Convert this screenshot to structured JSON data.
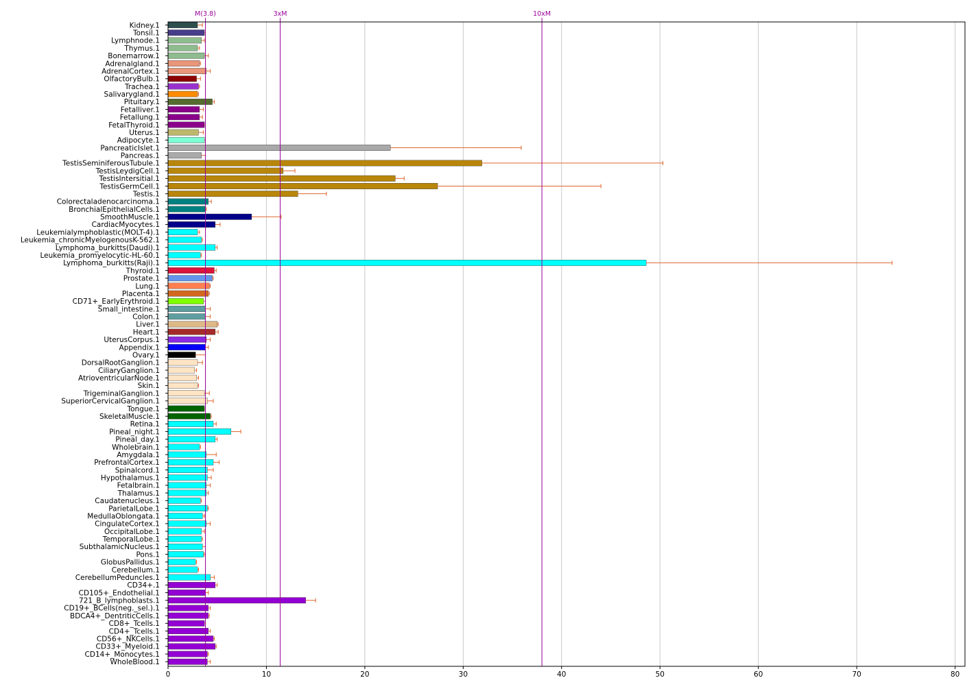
{
  "chart_data": {
    "type": "bar",
    "orientation": "horizontal",
    "title": "",
    "xlabel": "",
    "ylabel": "",
    "xlim": [
      0,
      81
    ],
    "xticks": [
      0,
      10,
      20,
      30,
      40,
      50,
      60,
      70,
      80
    ],
    "grid": "vertical",
    "error_bar_color": "#e0642a",
    "reference_lines": [
      {
        "label": "M(3.8)",
        "value": 3.8,
        "color": "#990099"
      },
      {
        "label": "3xM",
        "value": 11.4,
        "color": "#990099"
      },
      {
        "label": "10xM",
        "value": 38.0,
        "color": "#990099"
      }
    ],
    "categories": [
      "Kidney.1",
      "Tonsil.1",
      "Lymphnode.1",
      "Thymus.1",
      "Bonemarrow.1",
      "Adrenalgland.1",
      "AdrenalCortex.1",
      "OlfactoryBulb.1",
      "Trachea.1",
      "Salivarygland.1",
      "Pituitary.1",
      "Fetalliver.1",
      "Fetallung.1",
      "FetalThyroid.1",
      "Uterus.1",
      "Adipocyte.1",
      "PancreaticIslet.1",
      "Pancreas.1",
      "TestisSeminiferousTubule.1",
      "TestisLeydigCell.1",
      "TestisIntersitial.1",
      "TestisGermCell.1",
      "Testis.1",
      "Colorectaladenocarcinoma.1",
      "BronchialEpithelialCells.1",
      "SmoothMuscle.1",
      "CardiacMyocytes.1",
      "Leukemialymphoblastic(MOLT-4).1",
      "Leukemia_chronicMyelogenousK-562.1",
      "Lymphoma_burkitts(Daudi).1",
      "Leukemia_promyelocytic-HL-60.1",
      "Lymphoma_burkitts(Raji).1",
      "Thyroid.1",
      "Prostate.1",
      "Lung.1",
      "Placenta.1",
      "CD71+_EarlyErythroid.1",
      "Small_intestine.1",
      "Colon.1",
      "Liver.1",
      "Heart.1",
      "UterusCorpus.1",
      "Appendix.1",
      "Ovary.1",
      "DorsalRootGanglion.1",
      "CiliaryGanglion.1",
      "AtrioventricularNode.1",
      "Skin.1",
      "TrigeminalGanglion.1",
      "SuperiorCervicalGanglion.1",
      "Tongue.1",
      "SkeletalMuscle.1",
      "Retina.1",
      "Pineal_night.1",
      "Pineal_day.1",
      "Wholebrain.1",
      "Amygdala.1",
      "PrefrontalCortex.1",
      "Spinalcord.1",
      "Hypothalamus.1",
      "Fetalbrain.1",
      "Thalamus.1",
      "Caudatenucleus.1",
      "ParietalLobe.1",
      "MedullaOblongata.1",
      "CingulateCortex.1",
      "OccipitalLobe.1",
      "TemporalLobe.1",
      "SubthalamicNucleus.1",
      "Pons.1",
      "GlobusPallidus.1",
      "Cerebellum.1",
      "CerebellumPeduncles.1",
      "CD34+.1",
      "CD105+_Endothelial.1",
      "721_B_lymphoblasts.1",
      "CD19+_BCells(neg._sel.).1",
      "BDCA4+_DentriticCells.1",
      "CD8+_Tcells.1",
      "CD4+_Tcells.1",
      "CD56+_NKCells.1",
      "CD33+_Myeloid.1",
      "CD14+_Monocytes.1",
      "WholeBlood.1"
    ],
    "values": [
      3.0,
      3.7,
      3.4,
      3.0,
      3.7,
      3.2,
      3.9,
      2.9,
      3.1,
      3.0,
      4.5,
      3.2,
      3.2,
      3.7,
      3.1,
      3.7,
      22.6,
      3.4,
      31.9,
      11.7,
      23.1,
      27.4,
      13.2,
      4.1,
      3.8,
      8.5,
      4.8,
      3.0,
      3.4,
      4.8,
      3.3,
      48.6,
      4.7,
      4.5,
      4.2,
      4.1,
      3.6,
      3.8,
      3.8,
      5.0,
      4.8,
      3.9,
      3.8,
      2.8,
      3.0,
      2.7,
      2.9,
      3.0,
      3.7,
      4.0,
      3.7,
      4.3,
      4.6,
      6.4,
      4.8,
      3.2,
      3.9,
      4.6,
      4.0,
      4.0,
      3.9,
      3.9,
      3.3,
      4.0,
      3.5,
      3.9,
      3.4,
      3.4,
      3.5,
      3.6,
      2.8,
      3.0,
      4.3,
      4.8,
      3.8,
      14.0,
      4.1,
      4.1,
      3.7,
      4.1,
      4.6,
      4.8,
      4.0,
      4.0
    ],
    "errors": [
      0.5,
      0.1,
      0.3,
      0.2,
      0.4,
      0.1,
      0.4,
      0.4,
      0.1,
      0.1,
      0.2,
      0.4,
      0.3,
      0.1,
      0.5,
      0.1,
      13.3,
      0.4,
      18.4,
      1.2,
      0.9,
      16.6,
      2.9,
      0.3,
      0.1,
      3.0,
      0.5,
      0.2,
      0.1,
      0.2,
      0.1,
      25.0,
      0.2,
      0.1,
      0.1,
      0.1,
      0.2,
      0.5,
      0.5,
      0.1,
      0.3,
      0.4,
      0.3,
      1.0,
      0.5,
      0.2,
      0.2,
      0.1,
      0.5,
      0.6,
      0.1,
      0.1,
      0.3,
      1.0,
      0.2,
      0.1,
      1.0,
      0.6,
      0.6,
      0.4,
      0.4,
      0.2,
      0.1,
      0.1,
      0.2,
      0.4,
      0.3,
      0.1,
      0.3,
      0.1,
      0.1,
      0.1,
      0.4,
      0.2,
      0.3,
      1.0,
      0.2,
      0.1,
      0.1,
      0.2,
      0.1,
      0.1,
      0.1,
      0.3
    ],
    "colors": [
      "#2f4f4f",
      "#483d8b",
      "#8fbc8f",
      "#8fbc8f",
      "#8fbc8f",
      "#e9967a",
      "#e9967a",
      "#8b0000",
      "#9932cc",
      "#ff8c00",
      "#556b2f",
      "#8b008b",
      "#8b008b",
      "#8b008b",
      "#bdb76b",
      "#7fffd4",
      "#a9a9a9",
      "#a9a9a9",
      "#b8860b",
      "#b8860b",
      "#b8860b",
      "#b8860b",
      "#b8860b",
      "#008080",
      "#008080",
      "#00008b",
      "#00008b",
      "#00ffff",
      "#00ffff",
      "#00ffff",
      "#00ffff",
      "#00ffff",
      "#dc143c",
      "#6495ed",
      "#ff7f50",
      "#d2691e",
      "#7fff00",
      "#5f9ea0",
      "#5f9ea0",
      "#deb887",
      "#a52a2a",
      "#8a2be2",
      "#0000ff",
      "#000000",
      "#ffe4c4",
      "#ffe4c4",
      "#ffe4c4",
      "#ffe4c4",
      "#ffe4c4",
      "#ffe4c4",
      "#006400",
      "#006400",
      "#00ffff",
      "#00ffff",
      "#00ffff",
      "#00ffff",
      "#00ffff",
      "#00ffff",
      "#00ffff",
      "#00ffff",
      "#00ffff",
      "#00ffff",
      "#00ffff",
      "#00ffff",
      "#00ffff",
      "#00ffff",
      "#00ffff",
      "#00ffff",
      "#00ffff",
      "#00ffff",
      "#00ffff",
      "#00ffff",
      "#00ffff",
      "#9400d3",
      "#9400d3",
      "#9400d3",
      "#9400d3",
      "#9400d3",
      "#9400d3",
      "#9400d3",
      "#9400d3",
      "#9400d3",
      "#9400d3",
      "#9400d3"
    ]
  }
}
